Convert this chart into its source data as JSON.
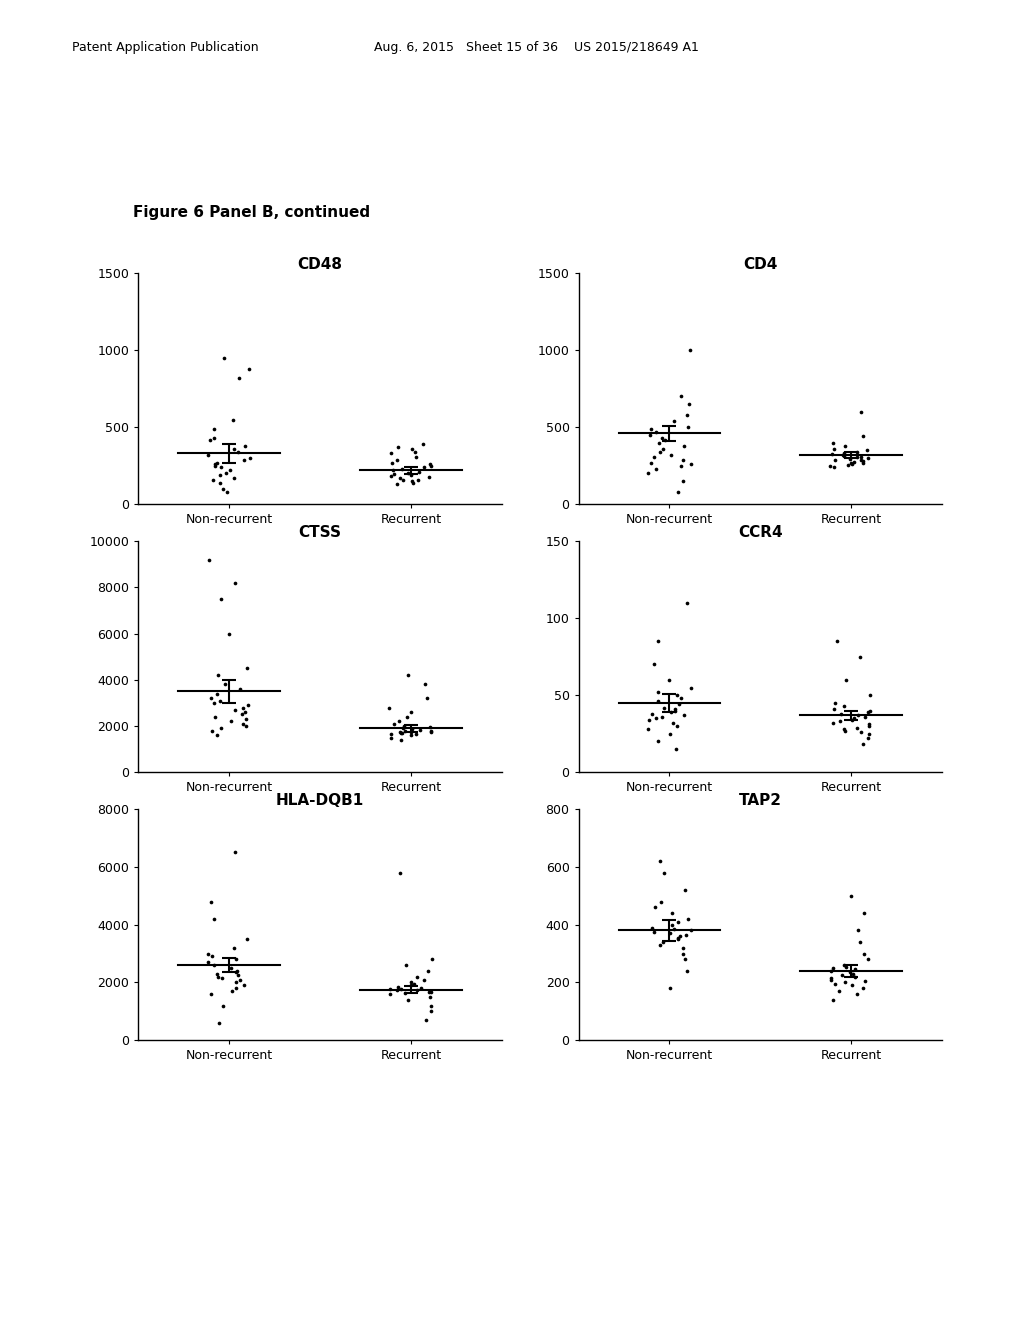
{
  "figure_label": "Figure 6 Panel B, continued",
  "header_left": "Patent Application Publication",
  "header_right": "Aug. 6, 2015   Sheet 15 of 36    US 2015/218649 A1",
  "plots": [
    {
      "title": "CD48",
      "ylim": [
        0,
        1500
      ],
      "yticks": [
        0,
        500,
        1000,
        1500
      ],
      "non_recurrent_mean": 330,
      "non_recurrent_sem": 60,
      "recurrent_mean": 220,
      "recurrent_sem": 25,
      "non_recurrent_points": [
        950,
        880,
        820,
        550,
        490,
        430,
        420,
        380,
        360,
        340,
        320,
        300,
        290,
        270,
        260,
        250,
        240,
        220,
        200,
        190,
        170,
        160,
        140,
        100,
        80
      ],
      "recurrent_points": [
        390,
        370,
        360,
        340,
        330,
        310,
        290,
        270,
        260,
        250,
        240,
        230,
        220,
        210,
        200,
        195,
        190,
        185,
        180,
        170,
        160,
        155,
        150,
        140,
        130
      ]
    },
    {
      "title": "CD4",
      "ylim": [
        0,
        1500
      ],
      "yticks": [
        0,
        500,
        1000,
        1500
      ],
      "non_recurrent_mean": 460,
      "non_recurrent_sem": 50,
      "recurrent_mean": 320,
      "recurrent_sem": 20,
      "non_recurrent_points": [
        1000,
        700,
        650,
        580,
        540,
        500,
        490,
        470,
        450,
        430,
        420,
        400,
        380,
        360,
        340,
        320,
        310,
        290,
        270,
        260,
        250,
        230,
        200,
        150,
        80
      ],
      "recurrent_points": [
        600,
        440,
        400,
        380,
        360,
        350,
        340,
        330,
        325,
        320,
        315,
        310,
        305,
        300,
        295,
        290,
        285,
        280,
        275,
        270,
        265,
        260,
        255,
        250,
        245
      ]
    },
    {
      "title": "CTSS",
      "ylim": [
        0,
        10000
      ],
      "yticks": [
        0,
        2000,
        4000,
        6000,
        8000,
        10000
      ],
      "non_recurrent_mean": 3500,
      "non_recurrent_sem": 500,
      "recurrent_mean": 1900,
      "recurrent_sem": 150,
      "non_recurrent_points": [
        9200,
        8200,
        7500,
        6000,
        4500,
        4200,
        3800,
        3600,
        3400,
        3200,
        3100,
        3000,
        2900,
        2800,
        2700,
        2600,
        2500,
        2400,
        2300,
        2200,
        2100,
        2000,
        1900,
        1800,
        1600
      ],
      "recurrent_points": [
        4200,
        3800,
        3200,
        2800,
        2600,
        2400,
        2200,
        2100,
        2000,
        1950,
        1900,
        1850,
        1820,
        1800,
        1780,
        1760,
        1740,
        1720,
        1700,
        1680,
        1660,
        1640,
        1600,
        1500,
        1400
      ]
    },
    {
      "title": "CCR4",
      "ylim": [
        0,
        150
      ],
      "yticks": [
        0,
        50,
        100,
        150
      ],
      "non_recurrent_mean": 45,
      "non_recurrent_sem": 6,
      "recurrent_mean": 37,
      "recurrent_sem": 3,
      "non_recurrent_points": [
        110,
        85,
        70,
        60,
        55,
        52,
        50,
        48,
        46,
        44,
        42,
        41,
        40,
        39,
        38,
        37,
        36,
        35,
        34,
        32,
        30,
        28,
        25,
        20,
        15
      ],
      "recurrent_points": [
        85,
        75,
        60,
        50,
        45,
        43,
        41,
        40,
        39,
        38,
        37,
        36,
        35,
        34,
        33,
        32,
        31,
        30,
        29,
        28,
        27,
        26,
        25,
        22,
        18
      ]
    },
    {
      "title": "HLA-DQB1",
      "ylim": [
        0,
        8000
      ],
      "yticks": [
        0,
        2000,
        4000,
        6000,
        8000
      ],
      "non_recurrent_mean": 2600,
      "non_recurrent_sem": 250,
      "recurrent_mean": 1750,
      "recurrent_sem": 120,
      "non_recurrent_points": [
        6500,
        4800,
        4200,
        3500,
        3200,
        3000,
        2900,
        2800,
        2700,
        2600,
        2500,
        2400,
        2350,
        2300,
        2250,
        2200,
        2150,
        2100,
        2000,
        1900,
        1800,
        1700,
        1600,
        1200,
        600
      ],
      "recurrent_points": [
        5800,
        2800,
        2600,
        2400,
        2200,
        2100,
        2000,
        1950,
        1900,
        1850,
        1800,
        1780,
        1760,
        1740,
        1720,
        1700,
        1680,
        1660,
        1640,
        1600,
        1500,
        1400,
        1200,
        1000,
        700
      ]
    },
    {
      "title": "TAP2",
      "ylim": [
        0,
        800
      ],
      "yticks": [
        0,
        200,
        400,
        600,
        800
      ],
      "non_recurrent_mean": 380,
      "non_recurrent_sem": 35,
      "recurrent_mean": 240,
      "recurrent_sem": 20,
      "non_recurrent_points": [
        620,
        580,
        520,
        480,
        460,
        440,
        420,
        410,
        400,
        390,
        385,
        380,
        375,
        370,
        365,
        360,
        355,
        350,
        340,
        330,
        320,
        300,
        280,
        240,
        180
      ],
      "recurrent_points": [
        500,
        440,
        380,
        340,
        300,
        280,
        260,
        255,
        250,
        245,
        240,
        235,
        230,
        225,
        220,
        215,
        210,
        205,
        200,
        195,
        190,
        180,
        170,
        160,
        140
      ]
    }
  ],
  "background_color": "#ffffff",
  "dot_color": "#000000",
  "line_color": "#000000",
  "dot_size": 7,
  "font_size_title": 11,
  "font_size_tick": 9,
  "font_size_label": 9,
  "x_labels": [
    "Non-recurrent",
    "Recurrent"
  ],
  "x_positions": [
    1,
    2
  ]
}
